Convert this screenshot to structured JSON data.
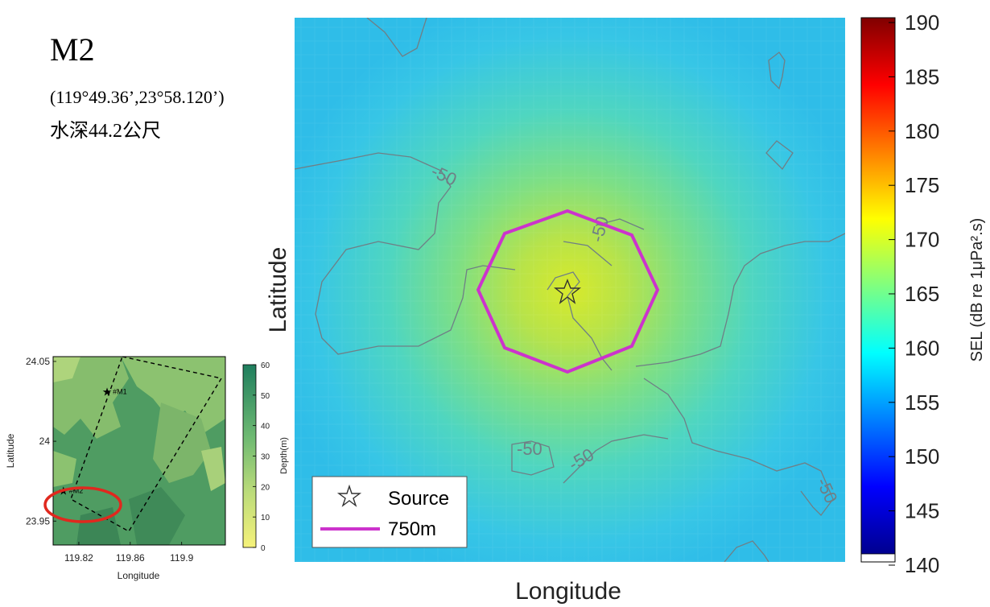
{
  "header": {
    "title": "M2",
    "coords": "(119°49.36’,23°58.120’)",
    "depth": "水深44.2公尺"
  },
  "chart_data": [
    {
      "type": "heatmap",
      "title": "",
      "xlabel": "Longitude",
      "ylabel": "Latitude",
      "colorbar": {
        "label": "SEL (dB re 1μPa².s)",
        "range": [
          140,
          190
        ],
        "ticks": [
          "190",
          "185",
          "180",
          "175",
          "170",
          "165",
          "160",
          "155",
          "150",
          "145",
          "140"
        ],
        "colormap": "jet"
      },
      "contour_labels": [
        "-50",
        "-50",
        "-50",
        "-50",
        "-50"
      ],
      "legend": {
        "position": "bottom-left",
        "entries": [
          {
            "label": "Source",
            "marker": "star-icon",
            "color": "#333333"
          },
          {
            "label": "750m",
            "marker": "line",
            "color": "#cc33cc"
          }
        ]
      }
    },
    {
      "type": "heatmap",
      "title": "",
      "xlabel": "Longitude",
      "ylabel": "Latitude",
      "xticks": [
        "119.82",
        "119.86",
        "119.9"
      ],
      "yticks": [
        "24.05",
        "24",
        "23.95"
      ],
      "colorbar": {
        "label": "Depth(m)",
        "range": [
          0,
          60
        ],
        "ticks": [
          "60",
          "50",
          "40",
          "30",
          "20",
          "10",
          "0"
        ],
        "colormap": "yellow-green"
      },
      "annotations": [
        {
          "label": "#M1",
          "lon": 119.842,
          "lat": 24.031
        },
        {
          "label": "#M2",
          "lon": 119.808,
          "lat": 23.969
        }
      ],
      "xlim": [
        119.8,
        119.934
      ],
      "ylim": [
        23.935,
        24.053
      ],
      "highlight": "#M2"
    }
  ]
}
